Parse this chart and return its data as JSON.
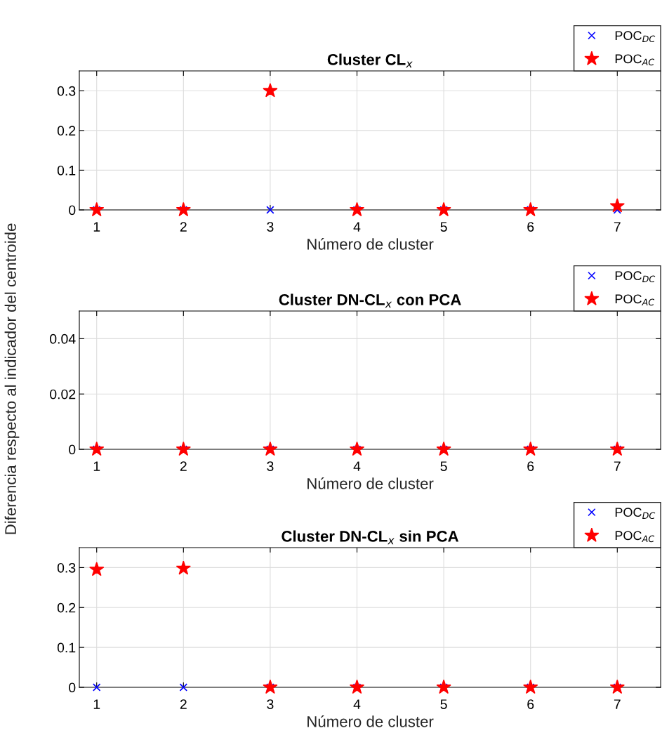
{
  "chart_data": [
    {
      "type": "scatter",
      "title": "Cluster CL$_{x}$",
      "xlabel": "Número de cluster",
      "x": [
        1,
        2,
        3,
        4,
        5,
        6,
        7
      ],
      "xlim": [
        0.8,
        7.5
      ],
      "xticks": [
        1,
        2,
        3,
        4,
        5,
        6,
        7
      ],
      "ylim": [
        0,
        0.35
      ],
      "yticks": [
        0,
        0.1,
        0.2,
        0.3
      ],
      "grid": true,
      "legend": "top right",
      "series": [
        {
          "name": "POC$_{DC}$",
          "color": "#0000ff",
          "marker": "cross",
          "values": [
            0,
            0,
            0,
            0,
            0,
            0,
            0
          ]
        },
        {
          "name": "POC$_{AC}$",
          "color": "#ff0000",
          "marker": "star",
          "values": [
            0,
            0,
            0.3,
            0,
            0,
            0,
            0.01
          ]
        }
      ]
    },
    {
      "type": "scatter",
      "title": "Cluster DN-CL$_{x}$ con PCA",
      "xlabel": "Número de cluster",
      "ylabel": "Diferencia respecto al indicador del centroide",
      "x": [
        1,
        2,
        3,
        4,
        5,
        6,
        7
      ],
      "xlim": [
        0.8,
        7.5
      ],
      "xticks": [
        1,
        2,
        3,
        4,
        5,
        6,
        7
      ],
      "ylim": [
        0,
        0.05
      ],
      "yticks": [
        0,
        0.02,
        0.04
      ],
      "grid": true,
      "legend": "top right",
      "series": [
        {
          "name": "POC$_{DC}$",
          "color": "#0000ff",
          "marker": "cross",
          "values": [
            0,
            0,
            0,
            0,
            0,
            0,
            0
          ]
        },
        {
          "name": "POC$_{AC}$",
          "color": "#ff0000",
          "marker": "star",
          "values": [
            0,
            0,
            0,
            0,
            0,
            0,
            0
          ]
        }
      ]
    },
    {
      "type": "scatter",
      "title": "Cluster DN-CL$_{x}$ sin PCA",
      "xlabel": "Número de cluster",
      "x": [
        1,
        2,
        3,
        4,
        5,
        6,
        7
      ],
      "xlim": [
        0.8,
        7.5
      ],
      "xticks": [
        1,
        2,
        3,
        4,
        5,
        6,
        7
      ],
      "ylim": [
        0,
        0.35
      ],
      "yticks": [
        0,
        0.1,
        0.2,
        0.3
      ],
      "grid": true,
      "legend": "top right",
      "series": [
        {
          "name": "POC$_{DC}$",
          "color": "#0000ff",
          "marker": "cross",
          "values": [
            0,
            0,
            0,
            0,
            0,
            0,
            0
          ]
        },
        {
          "name": "POC$_{AC}$",
          "color": "#ff0000",
          "marker": "star",
          "values": [
            0.295,
            0.298,
            0,
            0,
            0,
            0,
            0
          ]
        }
      ]
    }
  ]
}
